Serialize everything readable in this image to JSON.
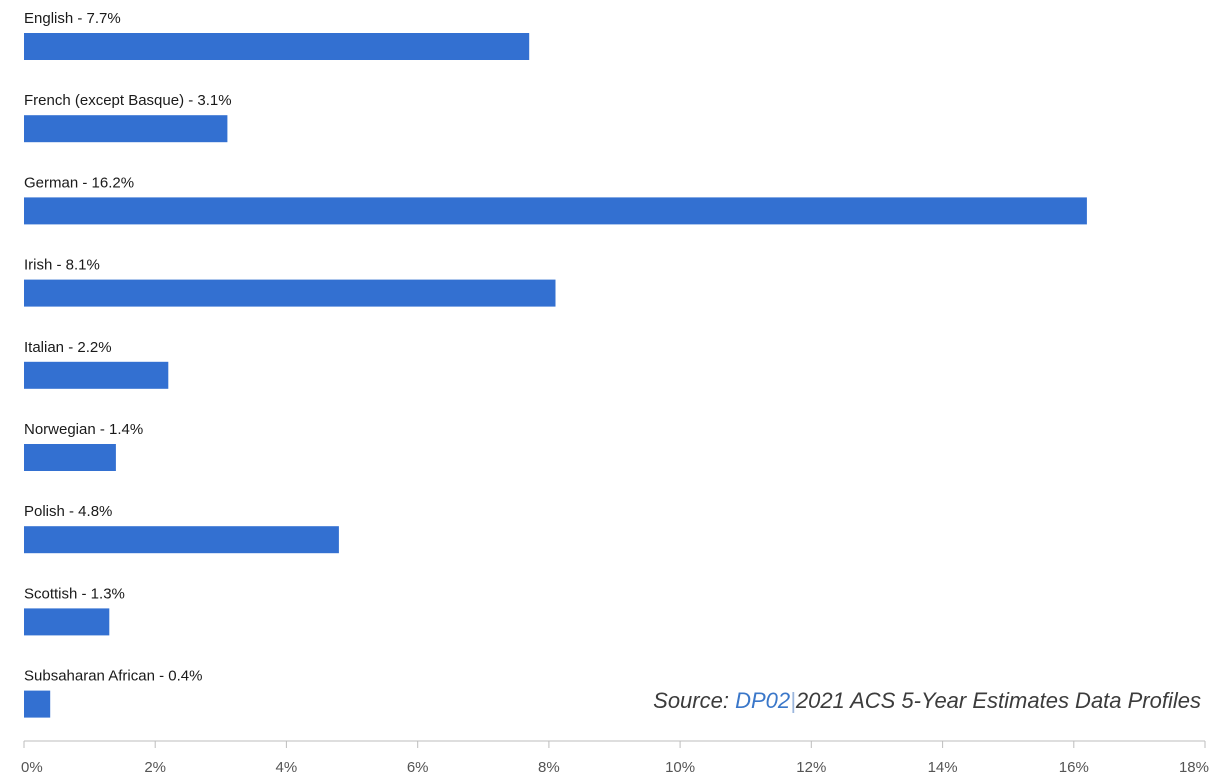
{
  "chart_data": {
    "type": "bar",
    "orientation": "horizontal",
    "categories": [
      "English",
      "French (except Basque)",
      "German",
      "Irish",
      "Italian",
      "Norwegian",
      "Polish",
      "Scottish",
      "Subsaharan African"
    ],
    "bar_labels": [
      "English - 7.7%",
      "French (except Basque) - 3.1%",
      "German - 16.2%",
      "Irish - 8.1%",
      "Italian - 2.2%",
      "Norwegian - 1.4%",
      "Polish - 4.8%",
      "Scottish - 1.3%",
      "Subsaharan African - 0.4%"
    ],
    "values": [
      7.7,
      3.1,
      16.2,
      8.1,
      2.2,
      1.4,
      4.8,
      1.3,
      0.4
    ],
    "xlim": [
      0,
      18
    ],
    "x_ticks": [
      0,
      2,
      4,
      6,
      8,
      10,
      12,
      14,
      16,
      18
    ],
    "x_tick_labels": [
      "0%",
      "2%",
      "4%",
      "6%",
      "8%",
      "10%",
      "12%",
      "14%",
      "16%",
      "18%"
    ],
    "bar_color": "#3370d1",
    "grid": false,
    "legend": "none"
  },
  "source": {
    "prefix": "Source: ",
    "link_text": "DP02",
    "separator": "|",
    "suffix": "2021 ACS 5-Year Estimates Data Profiles"
  },
  "colors": {
    "bar": "#3370d1",
    "axis": "#bdbdbd",
    "link": "#3a77c9"
  }
}
